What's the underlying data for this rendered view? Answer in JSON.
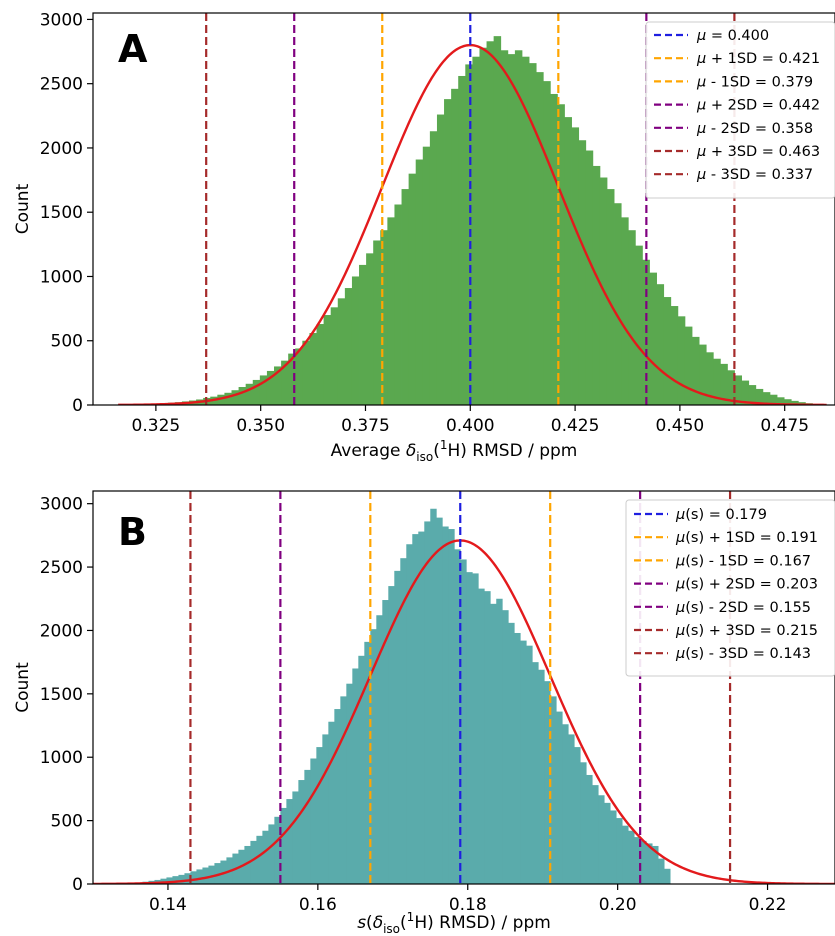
{
  "chart_data": [
    {
      "panel": "A",
      "type": "histogram",
      "xlabel": "Average δiso(1H) RMSD / ppm",
      "xlabel_parts": {
        "prefix": "Average δ",
        "sub": "iso",
        "mid": "(",
        "sup": "1",
        "suffix": "H) RMSD / ppm"
      },
      "ylabel": "Count",
      "xlim": [
        0.31,
        0.487
      ],
      "ylim": [
        0,
        3050
      ],
      "xticks": [
        0.325,
        0.35,
        0.375,
        0.4,
        0.425,
        0.45,
        0.475
      ],
      "xtick_labels": [
        "0.325",
        "0.350",
        "0.375",
        "0.400",
        "0.425",
        "0.450",
        "0.475"
      ],
      "yticks": [
        0,
        500,
        1000,
        1500,
        2000,
        2500,
        3000
      ],
      "ytick_labels": [
        "0",
        "500",
        "1000",
        "1500",
        "2000",
        "2500",
        "3000"
      ],
      "bar_color": "#5aa84f",
      "curve_color": "#e31a1c",
      "hist_range": [
        0.316,
        0.485
      ],
      "bins": 100,
      "bin_counts": [
        2,
        3,
        4,
        6,
        8,
        11,
        15,
        18,
        22,
        28,
        35,
        43,
        55,
        65,
        80,
        95,
        115,
        140,
        165,
        195,
        230,
        265,
        300,
        345,
        400,
        440,
        500,
        560,
        630,
        700,
        760,
        830,
        910,
        1000,
        1090,
        1180,
        1280,
        1360,
        1460,
        1560,
        1680,
        1800,
        1910,
        2010,
        2130,
        2260,
        2380,
        2460,
        2560,
        2650,
        2710,
        2780,
        2830,
        2870,
        2760,
        2730,
        2760,
        2710,
        2660,
        2590,
        2520,
        2420,
        2340,
        2240,
        2160,
        2060,
        1980,
        1860,
        1770,
        1680,
        1570,
        1460,
        1360,
        1240,
        1130,
        1030,
        940,
        840,
        770,
        690,
        610,
        530,
        470,
        410,
        360,
        320,
        270,
        230,
        190,
        155,
        125,
        100,
        80,
        60,
        45,
        32,
        22,
        14,
        8,
        4
      ],
      "curve": {
        "mu": 0.4,
        "sd": 0.021,
        "peak": 2800,
        "x_range": [
          0.316,
          0.485
        ]
      },
      "vlines": [
        {
          "x": 0.4,
          "color": "#1f1fe0",
          "label": "μ = 0.400"
        },
        {
          "x": 0.421,
          "color": "#ffa500",
          "label": "μ + 1SD = 0.421"
        },
        {
          "x": 0.379,
          "color": "#ffa500",
          "label": "μ - 1SD = 0.379"
        },
        {
          "x": 0.442,
          "color": "#800080",
          "label": "μ + 2SD = 0.442"
        },
        {
          "x": 0.358,
          "color": "#800080",
          "label": "μ - 2SD = 0.358"
        },
        {
          "x": 0.463,
          "color": "#a52a2a",
          "label": "μ + 3SD = 0.463"
        },
        {
          "x": 0.337,
          "color": "#a52a2a",
          "label": "μ - 3SD = 0.337"
        }
      ],
      "legend_position": "top-right"
    },
    {
      "panel": "B",
      "type": "histogram",
      "xlabel": "s(δiso(1H) RMSD) / ppm",
      "xlabel_parts": {
        "prefix": "s(δ",
        "sub": "iso",
        "mid": "(",
        "sup": "1",
        "suffix": "H) RMSD) / ppm"
      },
      "ylabel": "Count",
      "xlim": [
        0.13,
        0.229
      ],
      "ylim": [
        0,
        3100
      ],
      "xticks": [
        0.14,
        0.16,
        0.18,
        0.2,
        0.22
      ],
      "xtick_labels": [
        "0.14",
        "0.16",
        "0.18",
        "0.20",
        "0.22"
      ],
      "yticks": [
        0,
        500,
        1000,
        1500,
        2000,
        2500,
        3000
      ],
      "ytick_labels": [
        "0",
        "500",
        "1000",
        "1500",
        "2000",
        "2500",
        "3000"
      ],
      "bar_color": "#5aabab",
      "curve_color": "#e31a1c",
      "hist_range": [
        0.135,
        0.207
      ],
      "bins": 90,
      "bin_counts": [
        8,
        12,
        18,
        25,
        32,
        42,
        52,
        62,
        72,
        85,
        100,
        115,
        130,
        145,
        165,
        185,
        210,
        240,
        270,
        300,
        340,
        380,
        420,
        470,
        530,
        600,
        670,
        730,
        820,
        900,
        990,
        1080,
        1180,
        1280,
        1380,
        1480,
        1580,
        1700,
        1800,
        1910,
        2010,
        2120,
        2240,
        2350,
        2470,
        2570,
        2680,
        2760,
        2780,
        2860,
        2960,
        2890,
        2820,
        2800,
        2640,
        2560,
        2460,
        2450,
        2330,
        2310,
        2210,
        2250,
        2160,
        2060,
        1980,
        1920,
        1880,
        1750,
        1690,
        1600,
        1480,
        1360,
        1260,
        1180,
        1080,
        960,
        860,
        780,
        700,
        640,
        580,
        520,
        460,
        420,
        370,
        340,
        320,
        300,
        200,
        120
      ],
      "curve": {
        "mu": 0.179,
        "sd": 0.012,
        "peak": 2710,
        "x_range": [
          0.13,
          0.229
        ]
      },
      "vlines": [
        {
          "x": 0.179,
          "color": "#1f1fe0",
          "label": "μ(s) = 0.179"
        },
        {
          "x": 0.191,
          "color": "#ffa500",
          "label": "μ(s) + 1SD = 0.191"
        },
        {
          "x": 0.167,
          "color": "#ffa500",
          "label": "μ(s) - 1SD = 0.167"
        },
        {
          "x": 0.203,
          "color": "#800080",
          "label": "μ(s) + 2SD = 0.203"
        },
        {
          "x": 0.155,
          "color": "#800080",
          "label": "μ(s) - 2SD = 0.155"
        },
        {
          "x": 0.215,
          "color": "#a52a2a",
          "label": "μ(s) + 3SD = 0.215"
        },
        {
          "x": 0.143,
          "color": "#a52a2a",
          "label": "μ(s) - 3SD = 0.143"
        }
      ],
      "legend_position": "top-right"
    }
  ]
}
